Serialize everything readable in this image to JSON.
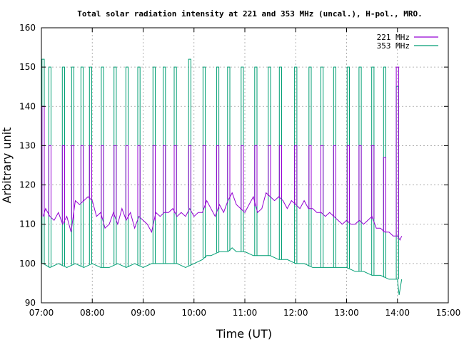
{
  "chart_data": {
    "type": "line",
    "title": "Total solar radiation intensity at 221 and 353 MHz (uncal.), H-pol., MRO.",
    "xlabel": "Time (UT)",
    "ylabel": "Arbitrary unit",
    "xlim": [
      "07:00",
      "15:00"
    ],
    "ylim": [
      90,
      160
    ],
    "x_ticks": [
      "07:00",
      "08:00",
      "09:00",
      "10:00",
      "11:00",
      "12:00",
      "13:00",
      "14:00",
      "15:00"
    ],
    "y_ticks": [
      "90",
      "100",
      "110",
      "120",
      "130",
      "140",
      "150",
      "160"
    ],
    "grid": true,
    "legend_position": "top-right",
    "series": [
      {
        "name": "221 MHz",
        "color": "#9400d3",
        "baseline": [
          [
            "07:02",
            112
          ],
          [
            "07:05",
            114
          ],
          [
            "07:10",
            112
          ],
          [
            "07:15",
            111
          ],
          [
            "07:20",
            113
          ],
          [
            "07:25",
            110
          ],
          [
            "07:30",
            112
          ],
          [
            "07:35",
            108
          ],
          [
            "07:40",
            116
          ],
          [
            "07:45",
            115
          ],
          [
            "07:50",
            116
          ],
          [
            "07:55",
            117
          ],
          [
            "08:00",
            116
          ],
          [
            "08:05",
            112
          ],
          [
            "08:10",
            113
          ],
          [
            "08:15",
            109
          ],
          [
            "08:20",
            110
          ],
          [
            "08:25",
            113
          ],
          [
            "08:30",
            110
          ],
          [
            "08:35",
            114
          ],
          [
            "08:40",
            111
          ],
          [
            "08:45",
            113
          ],
          [
            "08:50",
            109
          ],
          [
            "08:55",
            112
          ],
          [
            "09:00",
            111
          ],
          [
            "09:05",
            110
          ],
          [
            "09:10",
            108
          ],
          [
            "09:15",
            113
          ],
          [
            "09:20",
            112
          ],
          [
            "09:25",
            113
          ],
          [
            "09:30",
            113
          ],
          [
            "09:35",
            114
          ],
          [
            "09:40",
            112
          ],
          [
            "09:45",
            113
          ],
          [
            "09:50",
            112
          ],
          [
            "09:55",
            114
          ],
          [
            "10:00",
            112
          ],
          [
            "10:05",
            113
          ],
          [
            "10:10",
            113
          ],
          [
            "10:15",
            116
          ],
          [
            "10:20",
            114
          ],
          [
            "10:25",
            112
          ],
          [
            "10:30",
            115
          ],
          [
            "10:35",
            113
          ],
          [
            "10:40",
            116
          ],
          [
            "10:45",
            118
          ],
          [
            "10:50",
            115
          ],
          [
            "10:55",
            114
          ],
          [
            "11:00",
            113
          ],
          [
            "11:05",
            115
          ],
          [
            "11:10",
            117
          ],
          [
            "11:15",
            113
          ],
          [
            "11:20",
            114
          ],
          [
            "11:25",
            118
          ],
          [
            "11:30",
            117
          ],
          [
            "11:35",
            116
          ],
          [
            "11:40",
            117
          ],
          [
            "11:45",
            116
          ],
          [
            "11:50",
            114
          ],
          [
            "11:55",
            116
          ],
          [
            "12:00",
            115
          ],
          [
            "12:05",
            114
          ],
          [
            "12:10",
            116
          ],
          [
            "12:15",
            114
          ],
          [
            "12:20",
            114
          ],
          [
            "12:25",
            113
          ],
          [
            "12:30",
            113
          ],
          [
            "12:35",
            112
          ],
          [
            "12:40",
            113
          ],
          [
            "12:45",
            112
          ],
          [
            "12:50",
            111
          ],
          [
            "12:55",
            110
          ],
          [
            "13:00",
            111
          ],
          [
            "13:05",
            110
          ],
          [
            "13:10",
            110
          ],
          [
            "13:15",
            111
          ],
          [
            "13:20",
            110
          ],
          [
            "13:25",
            111
          ],
          [
            "13:30",
            112
          ],
          [
            "13:35",
            109
          ],
          [
            "13:40",
            109
          ],
          [
            "13:45",
            108
          ],
          [
            "13:50",
            108
          ],
          [
            "13:55",
            107
          ],
          [
            "14:00",
            107
          ],
          [
            "14:03",
            106
          ],
          [
            "14:05",
            107
          ]
        ],
        "peaks": [
          [
            "07:02",
            140
          ],
          [
            "07:10",
            130
          ],
          [
            "07:26",
            130
          ],
          [
            "07:37",
            130
          ],
          [
            "07:48",
            130
          ],
          [
            "07:58",
            130
          ],
          [
            "08:12",
            130
          ],
          [
            "08:27",
            130
          ],
          [
            "08:41",
            130
          ],
          [
            "08:55",
            130
          ],
          [
            "09:13",
            130
          ],
          [
            "09:25",
            130
          ],
          [
            "09:38",
            130
          ],
          [
            "09:55",
            130
          ],
          [
            "10:12",
            130
          ],
          [
            "10:28",
            130
          ],
          [
            "10:41",
            130
          ],
          [
            "10:57",
            130
          ],
          [
            "11:13",
            130
          ],
          [
            "11:29",
            130
          ],
          [
            "11:42",
            130
          ],
          [
            "12:00",
            130
          ],
          [
            "12:17",
            130
          ],
          [
            "12:31",
            130
          ],
          [
            "12:46",
            130
          ],
          [
            "13:02",
            130
          ],
          [
            "13:16",
            130
          ],
          [
            "13:31",
            130
          ],
          [
            "13:45",
            127
          ],
          [
            "14:00",
            150
          ]
        ]
      },
      {
        "name": "353 MHz",
        "color": "#009e73",
        "baseline": [
          [
            "07:02",
            100
          ],
          [
            "07:10",
            99
          ],
          [
            "07:20",
            100
          ],
          [
            "07:30",
            99
          ],
          [
            "07:40",
            100
          ],
          [
            "07:50",
            99
          ],
          [
            "08:00",
            100
          ],
          [
            "08:10",
            99
          ],
          [
            "08:20",
            99
          ],
          [
            "08:30",
            100
          ],
          [
            "08:40",
            99
          ],
          [
            "08:50",
            100
          ],
          [
            "09:00",
            99
          ],
          [
            "09:10",
            100
          ],
          [
            "09:20",
            100
          ],
          [
            "09:30",
            100
          ],
          [
            "09:40",
            100
          ],
          [
            "09:50",
            99
          ],
          [
            "10:00",
            100
          ],
          [
            "10:10",
            101
          ],
          [
            "10:15",
            102
          ],
          [
            "10:20",
            102
          ],
          [
            "10:30",
            103
          ],
          [
            "10:40",
            103
          ],
          [
            "10:45",
            104
          ],
          [
            "10:50",
            103
          ],
          [
            "11:00",
            103
          ],
          [
            "11:10",
            102
          ],
          [
            "11:20",
            102
          ],
          [
            "11:30",
            102
          ],
          [
            "11:40",
            101
          ],
          [
            "11:50",
            101
          ],
          [
            "12:00",
            100
          ],
          [
            "12:10",
            100
          ],
          [
            "12:20",
            99
          ],
          [
            "12:30",
            99
          ],
          [
            "12:40",
            99
          ],
          [
            "12:50",
            99
          ],
          [
            "13:00",
            99
          ],
          [
            "13:10",
            98
          ],
          [
            "13:20",
            98
          ],
          [
            "13:30",
            97
          ],
          [
            "13:40",
            97
          ],
          [
            "13:50",
            96
          ],
          [
            "14:00",
            96
          ],
          [
            "14:02",
            92
          ],
          [
            "14:05",
            96
          ]
        ],
        "peaks": [
          [
            "07:02",
            152
          ],
          [
            "07:10",
            150
          ],
          [
            "07:26",
            150
          ],
          [
            "07:37",
            150
          ],
          [
            "07:48",
            150
          ],
          [
            "07:58",
            150
          ],
          [
            "08:12",
            150
          ],
          [
            "08:27",
            150
          ],
          [
            "08:41",
            150
          ],
          [
            "08:55",
            150
          ],
          [
            "09:13",
            150
          ],
          [
            "09:25",
            150
          ],
          [
            "09:38",
            150
          ],
          [
            "09:55",
            152
          ],
          [
            "10:12",
            150
          ],
          [
            "10:28",
            150
          ],
          [
            "10:41",
            150
          ],
          [
            "10:57",
            150
          ],
          [
            "11:13",
            150
          ],
          [
            "11:29",
            150
          ],
          [
            "11:42",
            150
          ],
          [
            "12:00",
            150
          ],
          [
            "12:17",
            150
          ],
          [
            "12:31",
            150
          ],
          [
            "12:46",
            150
          ],
          [
            "13:02",
            150
          ],
          [
            "13:16",
            150
          ],
          [
            "13:31",
            150
          ],
          [
            "13:45",
            150
          ],
          [
            "14:00",
            145
          ]
        ]
      }
    ]
  }
}
